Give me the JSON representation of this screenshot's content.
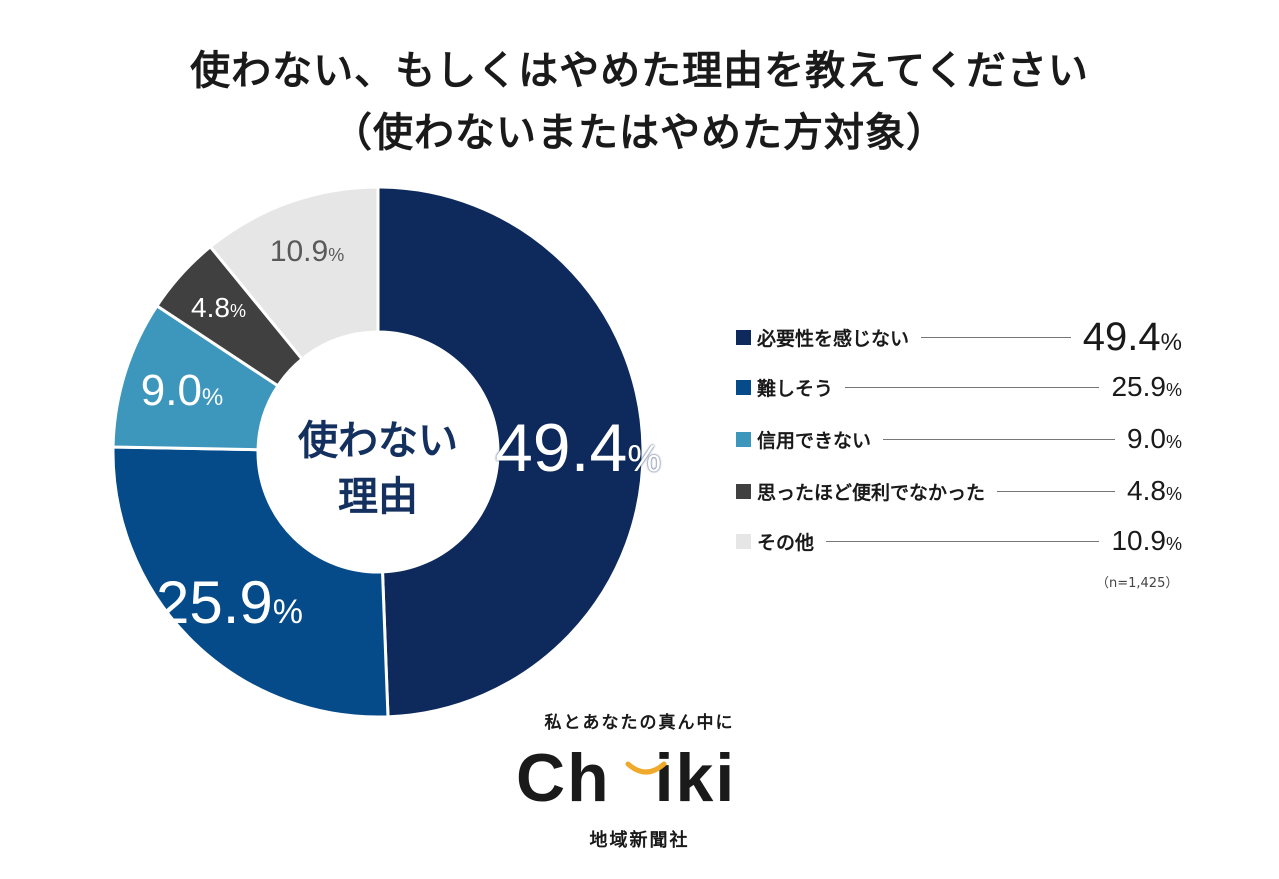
{
  "title": {
    "line1": "使わない、もしくはやめた理由を教えてください",
    "line2": "（使わないまたはやめた方対象）"
  },
  "chart_data": {
    "type": "pie",
    "donut": true,
    "title": "使わない、もしくはやめた理由を教えてください（使わないまたはやめた方対象）",
    "center_label": [
      "使わない",
      "理由"
    ],
    "unit": "%",
    "categories": [
      "必要性を感じない",
      "難しそう",
      "信用できない",
      "思ったほど便利でなかった",
      "その他"
    ],
    "values": [
      49.4,
      25.9,
      9.0,
      4.8,
      10.9
    ],
    "value_labels": [
      "49.4",
      "25.9",
      "9.0",
      "4.8",
      "10.9"
    ],
    "colors": [
      "#0e2a5c",
      "#054b8a",
      "#3d96bb",
      "#404040",
      "#e6e6e6"
    ],
    "label_colors": [
      "#ffffff",
      "#ffffff",
      "#ffffff",
      "#ffffff",
      "#595959"
    ],
    "legend_position": "right",
    "n_label": "（n=1,425）"
  },
  "footer": {
    "tagline": "私とあなたの真ん中に",
    "logo": "Chiiki",
    "company": "地域新聞社"
  },
  "colors": {
    "smile": "#f0a92a",
    "text": "#1a1a1a",
    "center_text": "#14305e"
  }
}
